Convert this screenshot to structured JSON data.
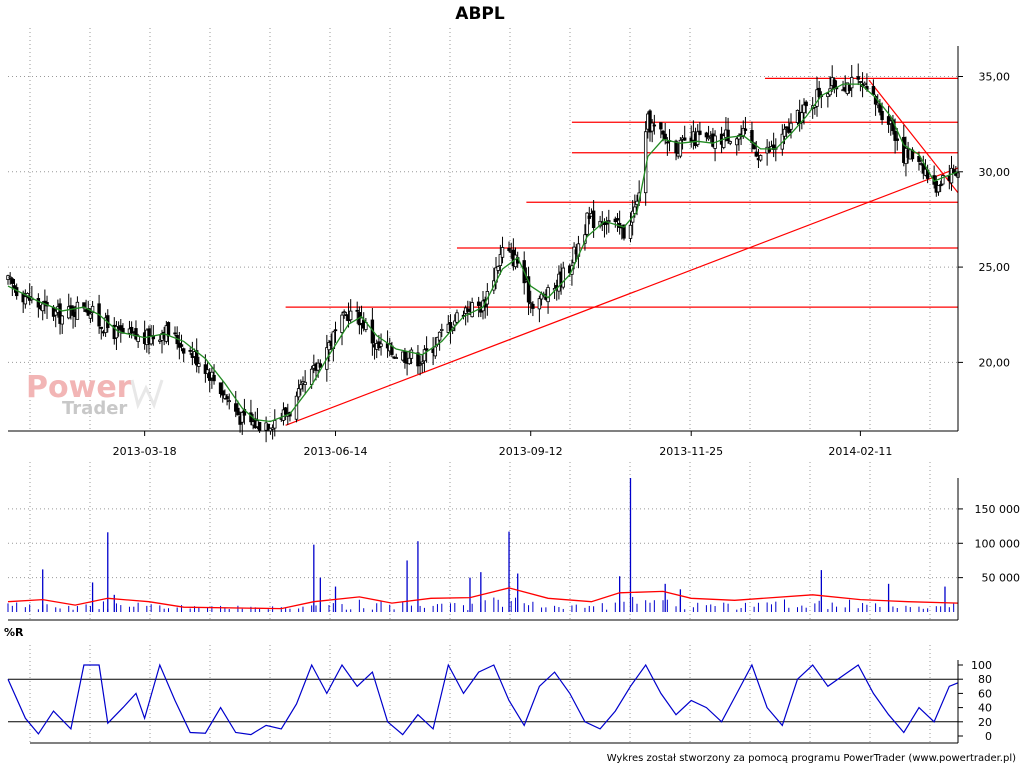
{
  "chart_data": [
    {
      "panel": "price",
      "type": "candlestick",
      "title": "ABPL",
      "xlabel": "",
      "ylabel": "",
      "grid": true,
      "ylim": [
        16.4,
        36.6
      ],
      "y_tick_labels": [
        "35,00",
        "30,00",
        "25,00",
        "20,00"
      ],
      "y_ticks": [
        35,
        30,
        25,
        20
      ],
      "x_tick_labels": [
        "2013-03-18",
        "2013-06-14",
        "2013-09-12",
        "2013-11-25",
        "2014-02-11"
      ],
      "x_ticks": [
        "2013-03-18",
        "2013-06-14",
        "2013-09-12",
        "2013-11-25",
        "2014-02-11"
      ],
      "x_range": [
        "2013-01-14",
        "2014-03-28"
      ],
      "close_path": [
        [
          "2013-01-14",
          24.2
        ],
        [
          "2013-01-28",
          23.0
        ],
        [
          "2013-02-08",
          22.4
        ],
        [
          "2013-02-18",
          23.1
        ],
        [
          "2013-02-25",
          22.1
        ],
        [
          "2013-03-06",
          21.5
        ],
        [
          "2013-03-18",
          21.2
        ],
        [
          "2013-03-27",
          21.7
        ],
        [
          "2013-04-05",
          20.9
        ],
        [
          "2013-04-15",
          19.8
        ],
        [
          "2013-04-24",
          18.3
        ],
        [
          "2013-05-02",
          17.0
        ],
        [
          "2013-05-08",
          16.8
        ],
        [
          "2013-05-15",
          16.9
        ],
        [
          "2013-05-24",
          17.5
        ],
        [
          "2013-06-03",
          19.3
        ],
        [
          "2013-06-10",
          20.8
        ],
        [
          "2013-06-20",
          22.6
        ],
        [
          "2013-06-26",
          22.3
        ],
        [
          "2013-07-03",
          20.8
        ],
        [
          "2013-07-12",
          20.5
        ],
        [
          "2013-07-24",
          20.2
        ],
        [
          "2013-08-02",
          21.5
        ],
        [
          "2013-08-12",
          22.8
        ],
        [
          "2013-08-21",
          23.0
        ],
        [
          "2013-08-30",
          25.9
        ],
        [
          "2013-09-06",
          25.3
        ],
        [
          "2013-09-12",
          23.2
        ],
        [
          "2013-09-20",
          23.5
        ],
        [
          "2013-09-30",
          25.1
        ],
        [
          "2013-10-08",
          27.4
        ],
        [
          "2013-10-16",
          27.6
        ],
        [
          "2013-10-25",
          26.8
        ],
        [
          "2013-10-31",
          28.3
        ],
        [
          "2013-11-05",
          32.6
        ],
        [
          "2013-11-12",
          31.8
        ],
        [
          "2013-11-20",
          31.3
        ],
        [
          "2013-11-28",
          31.8
        ],
        [
          "2013-12-05",
          31.5
        ],
        [
          "2013-12-12",
          32.0
        ],
        [
          "2013-12-19",
          31.9
        ],
        [
          "2013-12-27",
          30.9
        ],
        [
          "2014-01-03",
          31.3
        ],
        [
          "2014-01-10",
          32.4
        ],
        [
          "2014-01-17",
          33.3
        ],
        [
          "2014-01-24",
          34.3
        ],
        [
          "2014-02-03",
          34.7
        ],
        [
          "2014-02-11",
          34.5
        ],
        [
          "2014-02-18",
          33.6
        ],
        [
          "2014-02-25",
          32.6
        ],
        [
          "2014-03-03",
          30.9
        ],
        [
          "2014-03-10",
          30.8
        ],
        [
          "2014-03-17",
          29.1
        ],
        [
          "2014-03-21",
          29.8
        ],
        [
          "2014-03-28",
          30.1
        ]
      ],
      "sma_path": [
        [
          "2013-01-14",
          24.0
        ],
        [
          "2013-01-28",
          23.2
        ],
        [
          "2013-02-08",
          22.7
        ],
        [
          "2013-02-18",
          22.9
        ],
        [
          "2013-02-25",
          22.5
        ],
        [
          "2013-03-06",
          21.6
        ],
        [
          "2013-03-18",
          21.3
        ],
        [
          "2013-03-27",
          21.5
        ],
        [
          "2013-04-05",
          21.1
        ],
        [
          "2013-04-15",
          20.2
        ],
        [
          "2013-04-24",
          18.9
        ],
        [
          "2013-05-02",
          17.6
        ],
        [
          "2013-05-08",
          17.0
        ],
        [
          "2013-05-15",
          16.9
        ],
        [
          "2013-05-24",
          17.3
        ],
        [
          "2013-06-03",
          18.8
        ],
        [
          "2013-06-10",
          20.2
        ],
        [
          "2013-06-20",
          22.0
        ],
        [
          "2013-06-26",
          22.4
        ],
        [
          "2013-07-03",
          21.4
        ],
        [
          "2013-07-12",
          20.7
        ],
        [
          "2013-07-24",
          20.4
        ],
        [
          "2013-08-02",
          21.1
        ],
        [
          "2013-08-12",
          22.4
        ],
        [
          "2013-08-21",
          22.9
        ],
        [
          "2013-08-30",
          24.9
        ],
        [
          "2013-09-06",
          25.5
        ],
        [
          "2013-09-12",
          24.0
        ],
        [
          "2013-09-20",
          23.4
        ],
        [
          "2013-09-30",
          24.6
        ],
        [
          "2013-10-08",
          26.6
        ],
        [
          "2013-10-16",
          27.4
        ],
        [
          "2013-10-25",
          27.1
        ],
        [
          "2013-10-31",
          27.9
        ],
        [
          "2013-11-05",
          30.8
        ],
        [
          "2013-11-12",
          31.7
        ],
        [
          "2013-11-20",
          31.5
        ],
        [
          "2013-11-28",
          31.6
        ],
        [
          "2013-12-05",
          31.5
        ],
        [
          "2013-12-12",
          31.8
        ],
        [
          "2013-12-19",
          31.9
        ],
        [
          "2013-12-27",
          31.2
        ],
        [
          "2014-01-03",
          31.2
        ],
        [
          "2014-01-10",
          32.0
        ],
        [
          "2014-01-17",
          32.9
        ],
        [
          "2014-01-24",
          34.0
        ],
        [
          "2014-02-03",
          34.6
        ],
        [
          "2014-02-11",
          34.6
        ],
        [
          "2014-02-18",
          33.9
        ],
        [
          "2014-02-25",
          32.9
        ],
        [
          "2014-03-03",
          31.4
        ],
        [
          "2014-03-10",
          30.9
        ],
        [
          "2014-03-17",
          29.5
        ],
        [
          "2014-03-21",
          29.7
        ],
        [
          "2014-03-28",
          30.0
        ]
      ],
      "horizontal_levels": [
        {
          "value": 34.9,
          "from": "2013-12-29",
          "to": "2014-03-28"
        },
        {
          "value": 32.6,
          "from": "2013-10-01",
          "to": "2014-03-28"
        },
        {
          "value": 31.0,
          "from": "2013-10-01",
          "to": "2014-03-28"
        },
        {
          "value": 28.4,
          "from": "2013-09-10",
          "to": "2014-03-28"
        },
        {
          "value": 26.0,
          "from": "2013-08-09",
          "to": "2014-03-28"
        },
        {
          "value": 22.9,
          "from": "2013-05-22",
          "to": "2014-03-28"
        }
      ],
      "trend_lines": [
        {
          "from": [
            "2013-05-22",
            16.7
          ],
          "to": [
            "2014-03-28",
            30.2
          ]
        },
        {
          "from": [
            "2014-02-15",
            34.8
          ],
          "to": [
            "2014-03-28",
            28.9
          ]
        }
      ],
      "line_color": "#000000",
      "sma_color": "#228b22",
      "level_color": "#ff0000"
    },
    {
      "panel": "volume",
      "type": "bar",
      "ylim": [
        0,
        195000
      ],
      "y_tick_labels": [
        "150 000",
        "100 000",
        "50 000"
      ],
      "y_ticks": [
        150000,
        100000,
        50000
      ],
      "baseline_bars": 4000,
      "spikes": [
        [
          "2013-01-30",
          62000
        ],
        [
          "2013-02-22",
          43000
        ],
        [
          "2013-03-01",
          116000
        ],
        [
          "2013-03-04",
          25000
        ],
        [
          "2013-06-04",
          98000
        ],
        [
          "2013-06-07",
          50000
        ],
        [
          "2013-06-14",
          37000
        ],
        [
          "2013-07-17",
          75000
        ],
        [
          "2013-07-22",
          103000
        ],
        [
          "2013-08-15",
          50000
        ],
        [
          "2013-08-20",
          58000
        ],
        [
          "2013-09-02",
          117000
        ],
        [
          "2013-09-06",
          56000
        ],
        [
          "2013-10-23",
          52000
        ],
        [
          "2013-10-28",
          195000
        ],
        [
          "2013-11-13",
          41000
        ],
        [
          "2013-11-20",
          33000
        ],
        [
          "2014-01-24",
          61000
        ],
        [
          "2014-02-24",
          41000
        ],
        [
          "2014-03-22",
          37000
        ]
      ],
      "ma_path": [
        [
          "2013-01-14",
          15000
        ],
        [
          "2013-01-30",
          18000
        ],
        [
          "2013-02-14",
          10000
        ],
        [
          "2013-03-01",
          20000
        ],
        [
          "2013-03-20",
          15000
        ],
        [
          "2013-04-05",
          7000
        ],
        [
          "2013-05-20",
          5000
        ],
        [
          "2013-06-04",
          15000
        ],
        [
          "2013-06-25",
          22000
        ],
        [
          "2013-07-10",
          13000
        ],
        [
          "2013-07-28",
          20000
        ],
        [
          "2013-08-15",
          21000
        ],
        [
          "2013-09-02",
          35000
        ],
        [
          "2013-09-20",
          20000
        ],
        [
          "2013-10-10",
          15000
        ],
        [
          "2013-10-23",
          28000
        ],
        [
          "2013-11-12",
          30000
        ],
        [
          "2013-11-25",
          20000
        ],
        [
          "2013-12-15",
          17000
        ],
        [
          "2014-01-20",
          25000
        ],
        [
          "2014-02-11",
          18000
        ],
        [
          "2014-03-05",
          15000
        ],
        [
          "2014-03-28",
          13000
        ]
      ],
      "bar_color": "#0000cc",
      "ma_color": "#ff0000"
    },
    {
      "panel": "williams_r",
      "type": "line",
      "title": "%R",
      "ylim": [
        0,
        100
      ],
      "y_tick_labels": [
        "100",
        "80",
        "60",
        "40",
        "20",
        "0"
      ],
      "y_ticks": [
        100,
        80,
        60,
        40,
        20,
        0
      ],
      "reference_lines": [
        80,
        20
      ],
      "values": [
        [
          "2013-01-14",
          80
        ],
        [
          "2013-01-22",
          25
        ],
        [
          "2013-01-28",
          3
        ],
        [
          "2013-02-04",
          35
        ],
        [
          "2013-02-12",
          10
        ],
        [
          "2013-02-18",
          100
        ],
        [
          "2013-02-25",
          100
        ],
        [
          "2013-03-01",
          18
        ],
        [
          "2013-03-08",
          40
        ],
        [
          "2013-03-14",
          60
        ],
        [
          "2013-03-18",
          25
        ],
        [
          "2013-03-25",
          100
        ],
        [
          "2013-04-01",
          50
        ],
        [
          "2013-04-08",
          5
        ],
        [
          "2013-04-15",
          4
        ],
        [
          "2013-04-22",
          40
        ],
        [
          "2013-04-29",
          5
        ],
        [
          "2013-05-06",
          2
        ],
        [
          "2013-05-13",
          15
        ],
        [
          "2013-05-20",
          10
        ],
        [
          "2013-05-27",
          45
        ],
        [
          "2013-06-03",
          100
        ],
        [
          "2013-06-10",
          60
        ],
        [
          "2013-06-17",
          100
        ],
        [
          "2013-06-24",
          70
        ],
        [
          "2013-07-01",
          90
        ],
        [
          "2013-07-08",
          20
        ],
        [
          "2013-07-15",
          2
        ],
        [
          "2013-07-22",
          30
        ],
        [
          "2013-07-29",
          10
        ],
        [
          "2013-08-05",
          100
        ],
        [
          "2013-08-12",
          60
        ],
        [
          "2013-08-19",
          90
        ],
        [
          "2013-08-26",
          100
        ],
        [
          "2013-09-02",
          50
        ],
        [
          "2013-09-09",
          15
        ],
        [
          "2013-09-16",
          70
        ],
        [
          "2013-09-23",
          90
        ],
        [
          "2013-09-30",
          60
        ],
        [
          "2013-10-07",
          20
        ],
        [
          "2013-10-14",
          10
        ],
        [
          "2013-10-21",
          35
        ],
        [
          "2013-10-28",
          70
        ],
        [
          "2013-11-04",
          100
        ],
        [
          "2013-11-11",
          60
        ],
        [
          "2013-11-18",
          30
        ],
        [
          "2013-11-25",
          50
        ],
        [
          "2013-12-02",
          40
        ],
        [
          "2013-12-09",
          20
        ],
        [
          "2013-12-16",
          60
        ],
        [
          "2013-12-23",
          100
        ],
        [
          "2013-12-30",
          40
        ],
        [
          "2014-01-06",
          15
        ],
        [
          "2014-01-13",
          80
        ],
        [
          "2014-01-20",
          100
        ],
        [
          "2014-01-27",
          70
        ],
        [
          "2014-02-03",
          85
        ],
        [
          "2014-02-10",
          100
        ],
        [
          "2014-02-17",
          60
        ],
        [
          "2014-02-24",
          30
        ],
        [
          "2014-03-03",
          5
        ],
        [
          "2014-03-10",
          40
        ],
        [
          "2014-03-17",
          20
        ],
        [
          "2014-03-24",
          70
        ],
        [
          "2014-03-28",
          75
        ]
      ],
      "line_color": "#0000cc"
    }
  ],
  "watermark": {
    "line1": "Power",
    "line2": "Trader"
  },
  "footer": "Wykres został stworzony za pomocą programu PowerTrader (www.powertrader.pl)"
}
